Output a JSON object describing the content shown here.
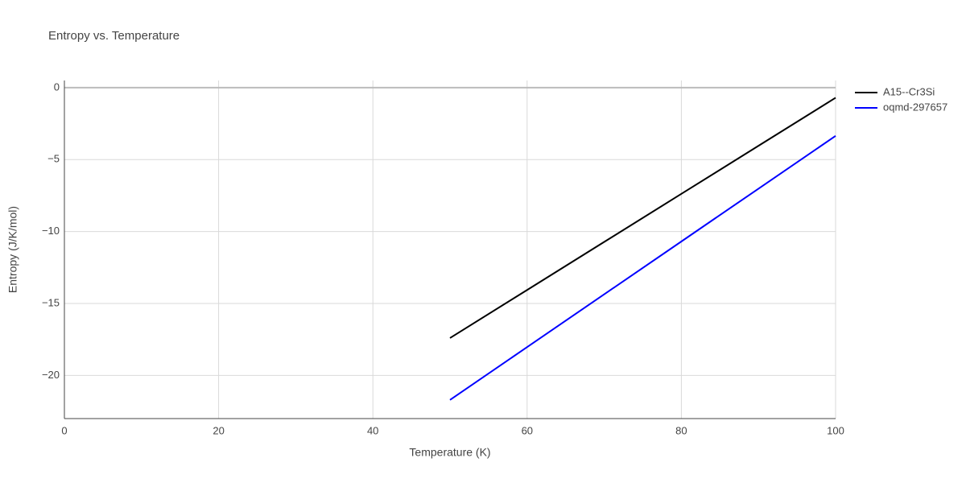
{
  "chart_data": {
    "type": "line",
    "title": "Entropy vs. Temperature",
    "x_label": "Temperature (K)",
    "y_label": "Entropy (J/K/mol)",
    "x": [
      50,
      60,
      70,
      80,
      90,
      100
    ],
    "series": [
      {
        "name": "A15--Cr3Si",
        "color": "#000000",
        "values": [
          -17.4,
          -14.06,
          -10.72,
          -7.38,
          -4.04,
          -0.7
        ]
      },
      {
        "name": "oqmd-297657",
        "color": "#0000ff",
        "values": [
          -21.7,
          -18.03,
          -14.36,
          -10.69,
          -7.02,
          -3.35
        ]
      }
    ],
    "xlim": [
      0,
      100
    ],
    "xticks": [
      0,
      20,
      40,
      60,
      80,
      100
    ],
    "ylim": [
      -23,
      0.5
    ],
    "yticks": [
      {
        "value": 0,
        "label": "0"
      },
      {
        "value": -5,
        "label": "−5"
      },
      {
        "value": -10,
        "label": "−10"
      },
      {
        "value": -15,
        "label": "−15"
      },
      {
        "value": -20,
        "label": "−20"
      }
    ],
    "grid": true,
    "legend": "outside-right"
  }
}
